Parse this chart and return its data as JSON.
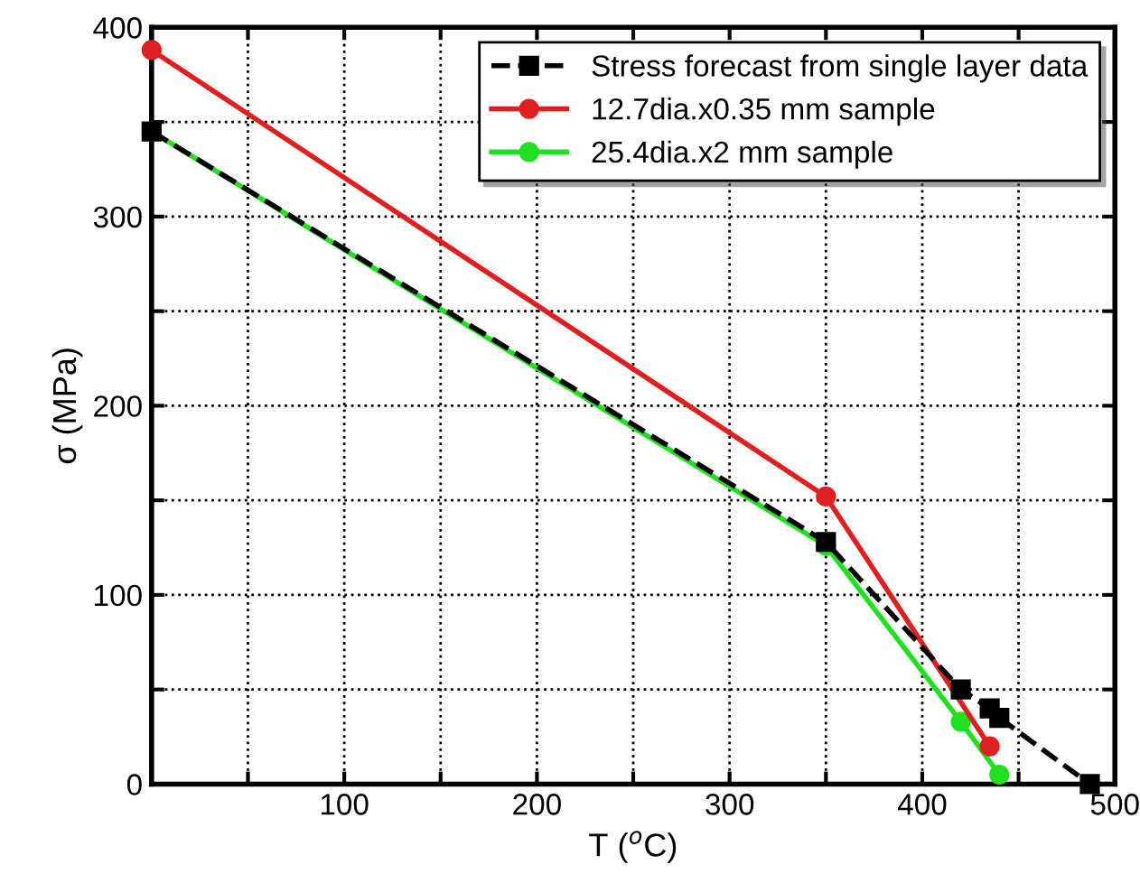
{
  "chart_data": {
    "type": "line",
    "xlabel": "T ($^{o}$C)",
    "ylabel": "σ (MPa)",
    "xlim": [
      0,
      500
    ],
    "ylim": [
      0,
      400
    ],
    "xticks": [
      {
        "value": 50,
        "label": null
      },
      100,
      {
        "value": 150,
        "label": null
      },
      200,
      {
        "value": 250,
        "label": null
      },
      300,
      {
        "value": 350,
        "label": null
      },
      400,
      {
        "value": 450,
        "label": null
      },
      500
    ],
    "yticks": [
      0,
      {
        "value": 50,
        "label": null
      },
      100,
      {
        "value": 150,
        "label": null
      },
      200,
      {
        "value": 250,
        "label": null
      },
      300,
      {
        "value": 350,
        "label": null
      },
      400
    ],
    "grid": true,
    "legend": "top right",
    "series": [
      {
        "name": "Stress forecast from single layer data",
        "color": "#000000",
        "marker": "square",
        "line_style": "dashed",
        "x": [
          0,
          350,
          420,
          435,
          440,
          487
        ],
        "values": [
          345,
          128,
          50,
          40,
          35,
          0
        ]
      },
      {
        "name": "12.7dia.x0.35 mm sample",
        "color": "#e02020",
        "marker": "circle",
        "line_style": "solid",
        "x": [
          0,
          350,
          435
        ],
        "values": [
          388,
          152,
          20
        ]
      },
      {
        "name": "25.4dia.x2 mm sample",
        "color": "#20e020",
        "marker": "circle",
        "line_style": "solid",
        "x": [
          0,
          350,
          420,
          440
        ],
        "values": [
          345,
          126,
          33,
          5
        ]
      }
    ]
  }
}
